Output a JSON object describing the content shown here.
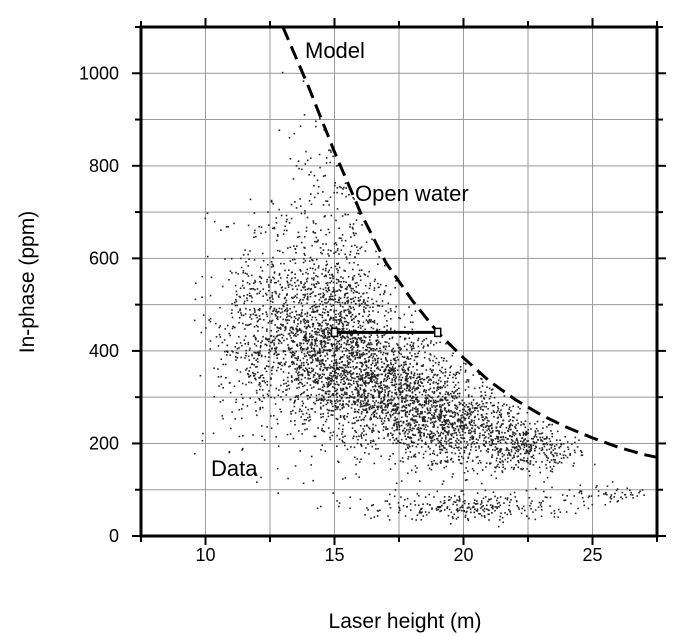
{
  "chart_data": {
    "type": "scatter",
    "title": "",
    "xlabel": "Laser height (m)",
    "ylabel": "In-phase (ppm)",
    "xlim": [
      7.5,
      27.5
    ],
    "ylim": [
      0,
      1100
    ],
    "x_ticks": [
      10,
      15,
      20,
      25
    ],
    "y_ticks": [
      0,
      200,
      400,
      600,
      800,
      1000
    ],
    "x_gridlines": [
      7.5,
      10,
      12.5,
      15,
      17.5,
      20,
      22.5,
      25,
      27.5
    ],
    "y_gridlines": [
      0,
      100,
      200,
      300,
      400,
      500,
      600,
      700,
      800,
      900,
      1000,
      1100
    ],
    "grid": true,
    "frame": "heavy black border with tick marks on all sides",
    "series": [
      {
        "kind": "scatter",
        "color": "#000000",
        "marker_size": 1,
        "description_clusters": [
          {
            "cx": 14.8,
            "cy": 430,
            "sx": 1.3,
            "sy": 80,
            "n": 1400
          },
          {
            "cx": 17.0,
            "cy": 320,
            "sx": 1.6,
            "sy": 60,
            "n": 1300
          },
          {
            "cx": 19.5,
            "cy": 240,
            "sx": 1.5,
            "sy": 45,
            "n": 1000
          },
          {
            "cx": 22.5,
            "cy": 190,
            "sx": 1.0,
            "sy": 25,
            "n": 350
          },
          {
            "cx": 13.0,
            "cy": 480,
            "sx": 1.2,
            "sy": 130,
            "n": 500
          },
          {
            "cx": 15.2,
            "cy": 700,
            "sx": 0.9,
            "sy": 150,
            "n": 260
          },
          {
            "cx": 11.5,
            "cy": 420,
            "sx": 0.8,
            "sy": 120,
            "n": 180
          },
          {
            "cx": 20.0,
            "cy": 65,
            "sx": 2.0,
            "sy": 15,
            "n": 280
          },
          {
            "cx": 25.5,
            "cy": 95,
            "sx": 1.3,
            "sy": 8,
            "n": 60
          }
        ]
      },
      {
        "name": "Model",
        "kind": "line",
        "style": "dashed",
        "color": "#000000",
        "x": [
          13.0,
          14.0,
          15.0,
          16.0,
          17.0,
          18.0,
          19.0,
          20.0,
          21.0,
          22.0,
          23.0,
          24.0,
          25.0,
          26.0,
          27.0,
          27.5
        ],
        "y": [
          1100,
          970,
          830,
          700,
          590,
          510,
          440,
          385,
          335,
          295,
          262,
          235,
          212,
          192,
          176,
          170
        ]
      },
      {
        "kind": "error_bar_horizontal",
        "color": "#000000",
        "x_start": 15.0,
        "x_end": 19.0,
        "y": 440
      }
    ],
    "annotations": [
      {
        "text": "Model",
        "x": 16.0,
        "y": 1045
      },
      {
        "text": "Open water",
        "x": 18.5,
        "y": 735
      },
      {
        "text": "Data",
        "x": 11.2,
        "y": 140
      }
    ]
  }
}
